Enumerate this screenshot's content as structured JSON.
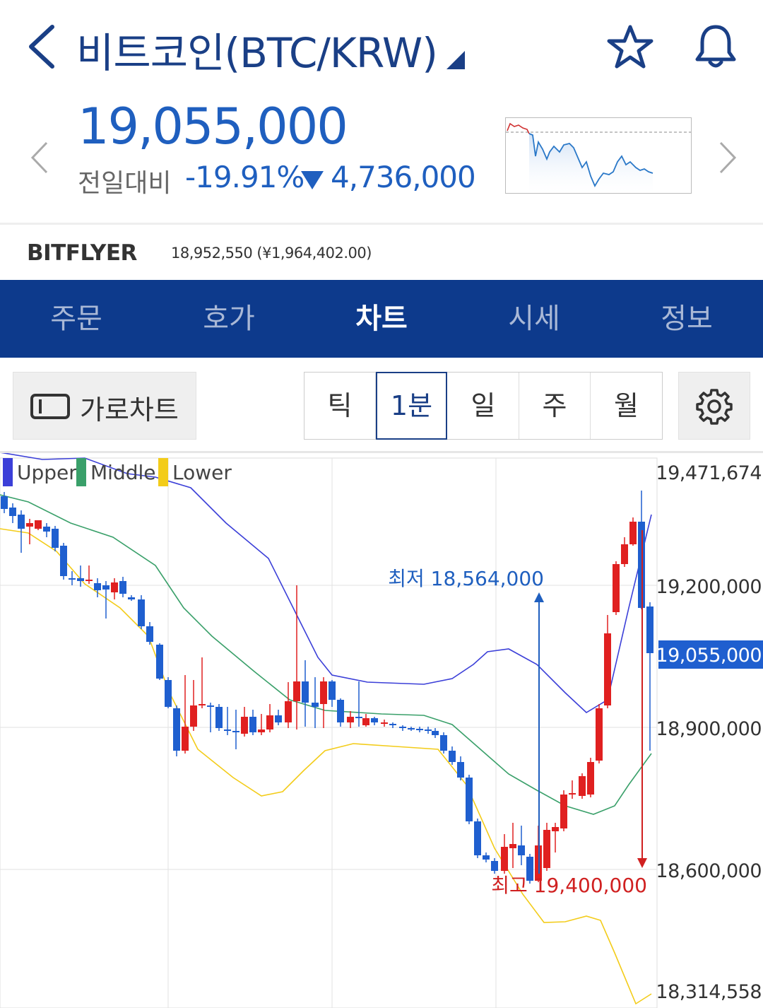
{
  "header": {
    "title": "비트코인(BTC/KRW)",
    "icons": {
      "back": "chevron-left-icon",
      "dropdown": "dropdown-triangle-icon",
      "favorite": "star-icon",
      "alert": "bell-icon"
    }
  },
  "price": {
    "current": "19,055,000",
    "change_label": "전일대비",
    "change_pct": "-19.91%",
    "change_amount": "4,736,000",
    "direction": "down",
    "color": "#1f5fbf"
  },
  "exchange": {
    "name": "BITFLYER",
    "price_text": "18,952,550 (¥1,964,402.00)"
  },
  "tabs": [
    {
      "label": "주문",
      "active": false
    },
    {
      "label": "호가",
      "active": false
    },
    {
      "label": "차트",
      "active": true
    },
    {
      "label": "시세",
      "active": false
    },
    {
      "label": "정보",
      "active": false
    }
  ],
  "toolbar": {
    "landscape_label": "가로차트",
    "intervals": [
      {
        "label": "틱",
        "active": false
      },
      {
        "label": "1분",
        "active": true
      },
      {
        "label": "일",
        "active": false
      },
      {
        "label": "주",
        "active": false
      },
      {
        "label": "월",
        "active": false
      }
    ]
  },
  "chart": {
    "legend": [
      {
        "name": "Upper",
        "color": "#3b3fd8"
      },
      {
        "name": "Middle",
        "color": "#3aa06a"
      },
      {
        "name": "Lower",
        "color": "#f3cc1a"
      }
    ],
    "y_labels": [
      "19,471,674",
      "19,200,000",
      "18,900,000",
      "18,600,000",
      "18,314,558"
    ],
    "current_label": "19,055,000",
    "annotation_low": "최저 18,564,000",
    "annotation_high": "최고 19,400,000",
    "colors": {
      "up": "#e02020",
      "down": "#1f5fcf",
      "low_annotation": "#1f5fbf",
      "high_annotation": "#d02020"
    }
  }
}
